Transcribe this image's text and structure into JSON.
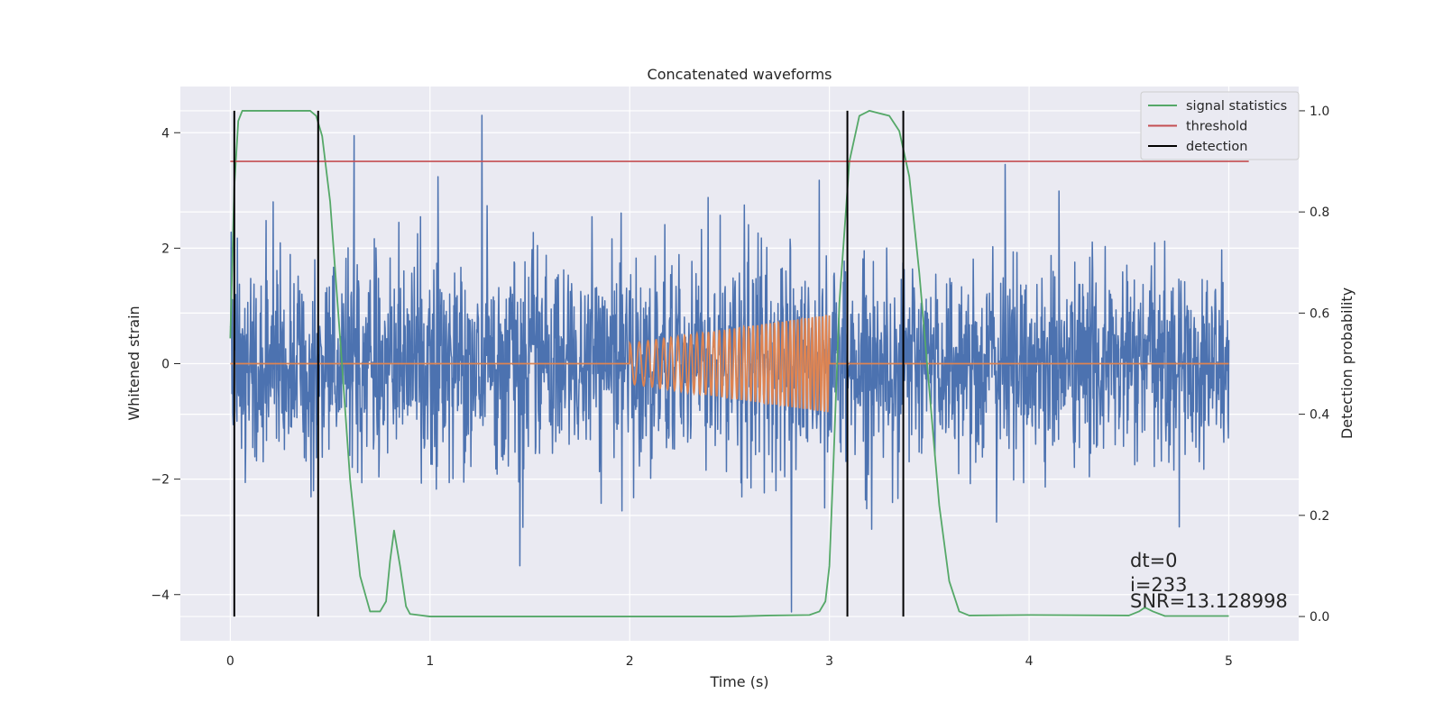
{
  "chart_data": {
    "type": "line",
    "title": "Concatenated waveforms",
    "xlabel": "Time (s)",
    "ylabel_left": "Whitened strain",
    "ylabel_right": "Detection probability",
    "xlim": [
      -0.25,
      5.35
    ],
    "ylim_left": [
      -4.8,
      4.8
    ],
    "ylim_right": [
      -0.048,
      1.048
    ],
    "x_ticks": [
      0,
      1,
      2,
      3,
      4,
      5
    ],
    "y_ticks_left": [
      -4,
      -2,
      0,
      2,
      4
    ],
    "y_ticks_left_labels": [
      "−4",
      "−2",
      "0",
      "2",
      "4"
    ],
    "y_ticks_right": [
      0.0,
      0.2,
      0.4,
      0.6,
      0.8,
      1.0
    ],
    "y_ticks_right_labels": [
      "0.0",
      "0.2",
      "0.4",
      "0.6",
      "0.8",
      "1.0"
    ],
    "grid": true,
    "background": "#eaeaf2",
    "legend_position": "top-right",
    "legend": [
      {
        "label": "signal statistics",
        "color": "#55a868"
      },
      {
        "label": "threshold",
        "color": "#c44e52"
      },
      {
        "label": "detection",
        "color": "#000000"
      }
    ],
    "series": [
      {
        "role": "strain",
        "axis": "left",
        "color": "#4c72b0",
        "x_range": [
          0,
          5
        ],
        "noise_std": 0.85,
        "noise_min": -4.3,
        "noise_max": 4.3,
        "peaks": [
          [
            0.62,
            3.95
          ],
          [
            1.26,
            4.3
          ],
          [
            1.45,
            -3.5
          ],
          [
            2.81,
            -4.3
          ],
          [
            3.88,
            3.45
          ]
        ]
      },
      {
        "role": "chirp",
        "axis": "left",
        "color": "#dd8452",
        "x_range": [
          0,
          5
        ],
        "chirp_start": 2.0,
        "chirp_end": 3.0,
        "amplitude_start": 0.35,
        "amplitude_end": 0.85,
        "freq_start": 20,
        "freq_end": 60
      },
      {
        "role": "signal statistics",
        "axis": "right",
        "color": "#55a868",
        "x": [
          0,
          0.02,
          0.04,
          0.06,
          0.1,
          0.2,
          0.3,
          0.4,
          0.43,
          0.46,
          0.5,
          0.55,
          0.6,
          0.65,
          0.7,
          0.75,
          0.78,
          0.8,
          0.82,
          0.85,
          0.88,
          0.9,
          1.0,
          1.5,
          2.0,
          2.5,
          2.7,
          2.9,
          2.95,
          2.98,
          3.0,
          3.02,
          3.05,
          3.1,
          3.15,
          3.2,
          3.3,
          3.35,
          3.4,
          3.45,
          3.5,
          3.55,
          3.6,
          3.65,
          3.7,
          4.0,
          4.5,
          4.55,
          4.58,
          4.62,
          4.68,
          5.0
        ],
        "y": [
          0.55,
          0.85,
          0.98,
          1.0,
          1.0,
          1.0,
          1.0,
          1.0,
          0.99,
          0.95,
          0.82,
          0.55,
          0.27,
          0.08,
          0.01,
          0.01,
          0.03,
          0.11,
          0.17,
          0.1,
          0.02,
          0.005,
          0.0,
          0.0,
          0.0,
          0.0,
          0.002,
          0.003,
          0.01,
          0.03,
          0.1,
          0.3,
          0.62,
          0.9,
          0.99,
          1.0,
          0.99,
          0.96,
          0.87,
          0.68,
          0.45,
          0.22,
          0.07,
          0.01,
          0.002,
          0.003,
          0.002,
          0.01,
          0.018,
          0.01,
          0.001,
          0.001
        ]
      },
      {
        "role": "threshold",
        "axis": "right",
        "color": "#c44e52",
        "x": [
          0,
          5.1
        ],
        "y": [
          0.9,
          0.9
        ]
      }
    ],
    "detections": [
      0.02,
      0.44,
      3.09,
      3.37
    ],
    "annotations": [
      "dt=0",
      "i=233",
      "SNR=13.128998"
    ]
  }
}
